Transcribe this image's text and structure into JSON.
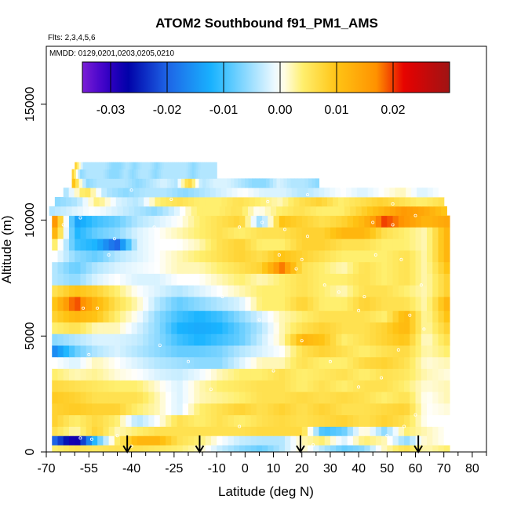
{
  "chart_data": {
    "type": "heatmap",
    "title": "ATOM2 Southbound f91_PM1_AMS",
    "subtitle_flights": "Flts: 2,3,4,5,6",
    "subtitle_dates": "MMDD: 0129,0201,0203,0205,0210",
    "xlabel": "Latitude (deg N)",
    "ylabel": "Altitude (m)",
    "xlim": [
      -70,
      85
    ],
    "ylim": [
      0,
      17500
    ],
    "x_ticks": [
      "-70",
      "-55",
      "-40",
      "-25",
      "-10",
      "0",
      "10",
      "20",
      "30",
      "40",
      "50",
      "60",
      "70",
      "80"
    ],
    "x_tick_values": [
      -70,
      -55,
      -40,
      -25,
      -10,
      0,
      10,
      20,
      30,
      40,
      50,
      60,
      70,
      80
    ],
    "x_minor_ticks": [
      -65,
      -60,
      -50,
      -45,
      -35,
      -30,
      -20,
      -15,
      -5,
      5,
      15,
      25,
      35,
      45,
      55,
      65,
      75,
      85
    ],
    "y_ticks": [
      "0",
      "5000",
      "10000",
      "15000"
    ],
    "y_tick_values": [
      0,
      5000,
      10000,
      15000
    ],
    "colorbar": {
      "range": [
        -0.035,
        0.03
      ],
      "tick_labels": [
        "-0.03",
        "-0.02",
        "-0.01",
        "0.00",
        "0.01",
        "0.02"
      ],
      "tick_values": [
        -0.03,
        -0.02,
        -0.01,
        0.0,
        0.01,
        0.02
      ],
      "colors": [
        "#7b1fd6",
        "#0000a8",
        "#1e64e6",
        "#19b4ff",
        "#ffffff",
        "#ffef6e",
        "#ffc414",
        "#ff9200",
        "#e60000",
        "#a01414"
      ]
    },
    "arrows_latitude": [
      -41.5,
      -16,
      19.5,
      61
    ],
    "layers": [
      {
        "alt": [
          0,
          300
        ],
        "xmin": -68,
        "xmax": 72,
        "v": [
          0.004,
          0.006,
          0.005,
          0.006,
          0.006,
          0.005,
          0.004,
          0.002,
          -0.003,
          -0.006,
          -0.008,
          -0.004,
          0.002,
          -0.004,
          -0.008,
          -0.006,
          0.002,
          0.006,
          0.002,
          0.004
        ]
      },
      {
        "alt": [
          300,
          700
        ],
        "xmin": -68,
        "xmax": 72,
        "v": [
          -0.02,
          -0.03,
          -0.01,
          0.004,
          0.012,
          0.012,
          0.006,
          0.004,
          0.0,
          -0.003,
          -0.004,
          -0.004,
          0.002,
          0.004,
          -0.002,
          0.004,
          0.002,
          -0.006,
          0.002,
          0.0
        ]
      },
      {
        "alt": [
          700,
          1100
        ],
        "xmin": -68,
        "xmax": 72,
        "v": [
          0.006,
          0.002,
          0.008,
          0.002,
          0.004,
          0.006,
          0.006,
          0.006,
          0.006,
          0.006,
          0.007,
          0.007,
          0.007,
          -0.01,
          -0.008,
          0.002,
          -0.006,
          0.004,
          0.002,
          0.0
        ]
      },
      {
        "alt": [
          1100,
          1600
        ],
        "xmin": -68,
        "xmax": 72,
        "v": [
          0.008,
          0.004,
          0.007,
          0.004,
          -0.004,
          0.0,
          0.006,
          0.004,
          0.006,
          0.004,
          0.006,
          0.007,
          0.006,
          0.007,
          0.008,
          0.006,
          0.008,
          0.006,
          0.0,
          0.0
        ]
      },
      {
        "alt": [
          1600,
          2100
        ],
        "xmin": -68,
        "xmax": 72,
        "v": [
          0.008,
          0.009,
          0.008,
          0.008,
          0.004,
          0.002,
          -0.002,
          0.004,
          0.006,
          0.008,
          0.006,
          0.008,
          0.006,
          0.008,
          0.006,
          0.006,
          0.007,
          0.008,
          0.0,
          0.001
        ]
      },
      {
        "alt": [
          2100,
          2600
        ],
        "xmin": -68,
        "xmax": 72,
        "v": [
          0.009,
          0.008,
          0.006,
          0.006,
          0.006,
          0.002,
          -0.002,
          0.002,
          0.003,
          0.004,
          0.006,
          0.006,
          0.007,
          0.006,
          0.007,
          0.006,
          0.004,
          0.006,
          0.0,
          0.002
        ]
      },
      {
        "alt": [
          2600,
          3100
        ],
        "xmin": -68,
        "xmax": 72,
        "v": [
          0.007,
          0.006,
          0.005,
          0.004,
          0.004,
          0.001,
          -0.002,
          0.002,
          0.004,
          0.005,
          0.006,
          0.006,
          0.004,
          0.006,
          0.004,
          0.006,
          0.006,
          0.004,
          0.001,
          0.002
        ]
      },
      {
        "alt": [
          3100,
          3600
        ],
        "xmin": -68,
        "xmax": 72,
        "v": [
          0.004,
          0.002,
          0.003,
          0.001,
          0.0,
          -0.002,
          -0.003,
          -0.001,
          0.002,
          0.004,
          0.004,
          0.006,
          0.004,
          0.005,
          0.006,
          0.004,
          0.006,
          0.005,
          0.002,
          0.001
        ]
      },
      {
        "alt": [
          3600,
          4100
        ],
        "xmin": -68,
        "xmax": 72,
        "v": [
          0.0,
          -0.002,
          0.002,
          0.0,
          -0.002,
          -0.004,
          -0.005,
          -0.006,
          -0.006,
          -0.002,
          0.002,
          0.002,
          0.006,
          0.004,
          0.004,
          0.007,
          0.008,
          0.006,
          0.001,
          0.002
        ]
      },
      {
        "alt": [
          4100,
          4600
        ],
        "xmin": -68,
        "xmax": 72,
        "v": [
          -0.016,
          -0.008,
          -0.004,
          -0.002,
          -0.004,
          -0.006,
          -0.008,
          -0.008,
          -0.007,
          -0.004,
          -0.002,
          0.0,
          0.006,
          0.008,
          0.006,
          0.004,
          0.006,
          0.007,
          0.002,
          0.004
        ]
      },
      {
        "alt": [
          4600,
          5100
        ],
        "xmin": -68,
        "xmax": 72,
        "v": [
          -0.006,
          -0.004,
          -0.002,
          -0.002,
          -0.003,
          -0.006,
          -0.01,
          -0.012,
          -0.01,
          -0.008,
          -0.003,
          0.002,
          0.012,
          0.01,
          0.004,
          0.006,
          0.008,
          0.01,
          0.001,
          0.006
        ]
      },
      {
        "alt": [
          5100,
          5600
        ],
        "xmin": -68,
        "xmax": 72,
        "v": [
          0.004,
          0.006,
          0.002,
          0.002,
          -0.002,
          -0.006,
          -0.012,
          -0.013,
          -0.012,
          -0.008,
          -0.004,
          0.002,
          0.006,
          0.008,
          0.006,
          0.006,
          0.008,
          0.012,
          0.002,
          0.008
        ]
      },
      {
        "alt": [
          5600,
          6100
        ],
        "xmin": -68,
        "xmax": 72,
        "v": [
          0.008,
          0.012,
          0.01,
          0.004,
          0.0,
          -0.006,
          -0.01,
          -0.012,
          -0.01,
          -0.006,
          -0.002,
          0.002,
          0.004,
          0.006,
          0.006,
          0.006,
          0.004,
          0.012,
          0.002,
          0.01
        ]
      },
      {
        "alt": [
          6100,
          6700
        ],
        "xmin": -68,
        "xmax": 72,
        "v": [
          0.01,
          0.02,
          0.012,
          0.006,
          0.002,
          -0.004,
          -0.008,
          -0.006,
          -0.004,
          -0.002,
          0.004,
          0.004,
          0.008,
          0.004,
          0.004,
          0.008,
          0.006,
          0.006,
          0.002,
          0.012
        ]
      },
      {
        "alt": [
          6700,
          7200
        ],
        "xmin": -68,
        "xmax": 72,
        "v": [
          0.006,
          0.01,
          0.008,
          0.004,
          0.0,
          -0.002,
          -0.004,
          -0.002,
          0.0,
          0.002,
          0.004,
          0.004,
          0.006,
          0.004,
          0.002,
          0.006,
          0.006,
          0.004,
          0.002,
          0.008
        ]
      },
      {
        "alt": [
          7200,
          7700
        ],
        "xmin": -68,
        "xmax": 72,
        "v": [
          -0.004,
          -0.006,
          -0.002,
          0.0,
          -0.002,
          -0.002,
          0.0,
          0.0,
          0.002,
          0.004,
          0.002,
          0.004,
          0.006,
          0.004,
          0.004,
          0.006,
          0.004,
          0.006,
          0.002,
          0.008
        ]
      },
      {
        "alt": [
          7700,
          8200
        ],
        "xmin": -68,
        "xmax": 72,
        "v": [
          -0.004,
          -0.008,
          -0.004,
          -0.002,
          -0.001,
          0.0,
          0.002,
          0.002,
          0.004,
          0.006,
          0.008,
          0.018,
          0.006,
          0.004,
          0.002,
          0.006,
          0.004,
          0.006,
          0.002,
          0.01
        ]
      },
      {
        "alt": [
          8200,
          8700
        ],
        "xmin": -68,
        "xmax": 72,
        "v": [
          0.0,
          -0.006,
          -0.008,
          -0.004,
          -0.002,
          0.0,
          0.002,
          0.004,
          0.006,
          0.008,
          0.006,
          0.01,
          0.008,
          0.006,
          0.004,
          0.004,
          0.004,
          0.006,
          0.002,
          0.012
        ]
      },
      {
        "alt": [
          8700,
          9200
        ],
        "xmin": -68,
        "xmax": 72,
        "v": [
          0.004,
          -0.01,
          -0.012,
          -0.02,
          -0.002,
          0.0,
          0.0,
          0.002,
          0.006,
          0.008,
          0.004,
          0.004,
          0.008,
          0.008,
          0.006,
          0.006,
          0.004,
          0.004,
          0.002,
          0.012
        ]
      },
      {
        "alt": [
          9200,
          9700
        ],
        "xmin": -68,
        "xmax": 72,
        "v": [
          0.012,
          -0.012,
          -0.008,
          -0.006,
          -0.002,
          0.0,
          0.002,
          0.004,
          0.006,
          0.004,
          0.006,
          0.006,
          0.008,
          0.008,
          0.012,
          0.012,
          0.006,
          0.004,
          0.002,
          0.012
        ]
      },
      {
        "alt": [
          9700,
          10200
        ],
        "xmin": -68,
        "xmax": 72,
        "v": [
          0.016,
          -0.014,
          -0.01,
          -0.008,
          -0.004,
          -0.002,
          0.0,
          0.004,
          0.006,
          0.008,
          -0.006,
          0.01,
          0.008,
          0.006,
          0.008,
          0.012,
          0.02,
          0.016,
          0.012,
          0.014
        ]
      },
      {
        "alt": [
          10200,
          10600
        ],
        "xmin": -69,
        "xmax": 71,
        "v": [
          -0.004,
          -0.002,
          0.0,
          -0.002,
          -0.004,
          -0.006,
          -0.002,
          0.004,
          0.004,
          0.006,
          0.0,
          0.004,
          0.006,
          0.004,
          0.004,
          0.008,
          0.012,
          0.016,
          0.014,
          0.01
        ]
      },
      {
        "alt": [
          10600,
          11000
        ],
        "xmin": -67,
        "xmax": 70,
        "v": [
          -0.006,
          -0.004,
          0.004,
          -0.002,
          -0.004,
          0.004,
          0.006,
          0.004,
          0.004,
          0.006,
          0.004,
          0.002,
          0.006,
          0.008,
          0.004,
          0.006,
          0.008,
          0.006,
          0.004,
          0.006
        ]
      },
      {
        "alt": [
          11000,
          11400
        ],
        "xmin": -64,
        "xmax": 70,
        "v": [
          -0.004,
          0.006,
          -0.004,
          -0.006,
          -0.004,
          -0.004,
          -0.006,
          -0.004,
          -0.002,
          0.0,
          -0.002,
          -0.002,
          -0.004,
          -0.002,
          0.0,
          -0.002,
          0.0,
          0.002,
          -0.002,
          0.0
        ]
      },
      {
        "alt": [
          11400,
          11800
        ],
        "xmin": -61,
        "xmax": 26,
        "v": [
          0.01,
          -0.006,
          -0.004,
          -0.004,
          -0.004,
          -0.006,
          -0.004,
          -0.002,
          -0.004,
          0.008,
          -0.004,
          -0.002,
          -0.002,
          -0.004,
          -0.006,
          -0.006,
          -0.002,
          -0.004,
          -0.004,
          -0.006
        ]
      },
      {
        "alt": [
          11800,
          12200
        ],
        "xmin": -61,
        "xmax": -10,
        "v": [
          0.008,
          -0.006,
          -0.004,
          -0.004,
          -0.004,
          -0.006,
          -0.006,
          -0.004,
          -0.006,
          -0.004,
          -0.004,
          -0.006,
          -0.004,
          -0.004,
          -0.004,
          -0.004,
          -0.006,
          -0.004,
          -0.004,
          -0.004
        ]
      },
      {
        "alt": [
          12200,
          12500
        ],
        "xmin": -60,
        "xmax": -10,
        "v": [
          0.008,
          -0.004,
          -0.004,
          -0.004,
          -0.004,
          -0.006,
          -0.006,
          -0.004,
          -0.006,
          -0.004,
          -0.004,
          -0.006,
          -0.004,
          -0.004,
          -0.004,
          -0.004,
          -0.006,
          -0.004,
          -0.004,
          -0.004
        ]
      }
    ],
    "sample_points": [
      [
        -58,
        600
      ],
      [
        -54,
        550
      ],
      [
        -45,
        700
      ],
      [
        -40,
        250
      ],
      [
        -55,
        4200
      ],
      [
        -52,
        6200
      ],
      [
        -57,
        6200
      ],
      [
        -48,
        8500
      ],
      [
        -46,
        9200
      ],
      [
        -58,
        10100
      ],
      [
        -64,
        9800
      ],
      [
        -40,
        11300
      ],
      [
        -2,
        9700
      ],
      [
        6,
        9900
      ],
      [
        12,
        8500
      ],
      [
        18,
        7900
      ],
      [
        20,
        8300
      ],
      [
        22,
        9300
      ],
      [
        28,
        7200
      ],
      [
        33,
        6900
      ],
      [
        42,
        6700
      ],
      [
        46,
        8500
      ],
      [
        52,
        9800
      ],
      [
        55,
        8300
      ],
      [
        62,
        7200
      ],
      [
        63,
        5300
      ],
      [
        54,
        4400
      ],
      [
        48,
        3200
      ],
      [
        40,
        2800
      ],
      [
        30,
        3900
      ],
      [
        10,
        3500
      ],
      [
        5,
        5700
      ],
      [
        -2,
        1100
      ],
      [
        -12,
        2700
      ],
      [
        -20,
        3900
      ],
      [
        -30,
        4600
      ],
      [
        20,
        200
      ],
      [
        24,
        300
      ],
      [
        50,
        700
      ],
      [
        56,
        1100
      ],
      [
        60,
        1600
      ],
      [
        34,
        11400
      ],
      [
        22,
        11100
      ],
      [
        -26,
        10900
      ],
      [
        -32,
        9700
      ],
      [
        60,
        10200
      ],
      [
        45,
        9900
      ],
      [
        8,
        10800
      ],
      [
        52,
        10700
      ],
      [
        58,
        5900
      ],
      [
        -22,
        7500
      ],
      [
        -8,
        6700
      ],
      [
        20,
        4800
      ],
      [
        40,
        6100
      ],
      [
        14,
        9600
      ],
      [
        60,
        12000
      ]
    ]
  }
}
